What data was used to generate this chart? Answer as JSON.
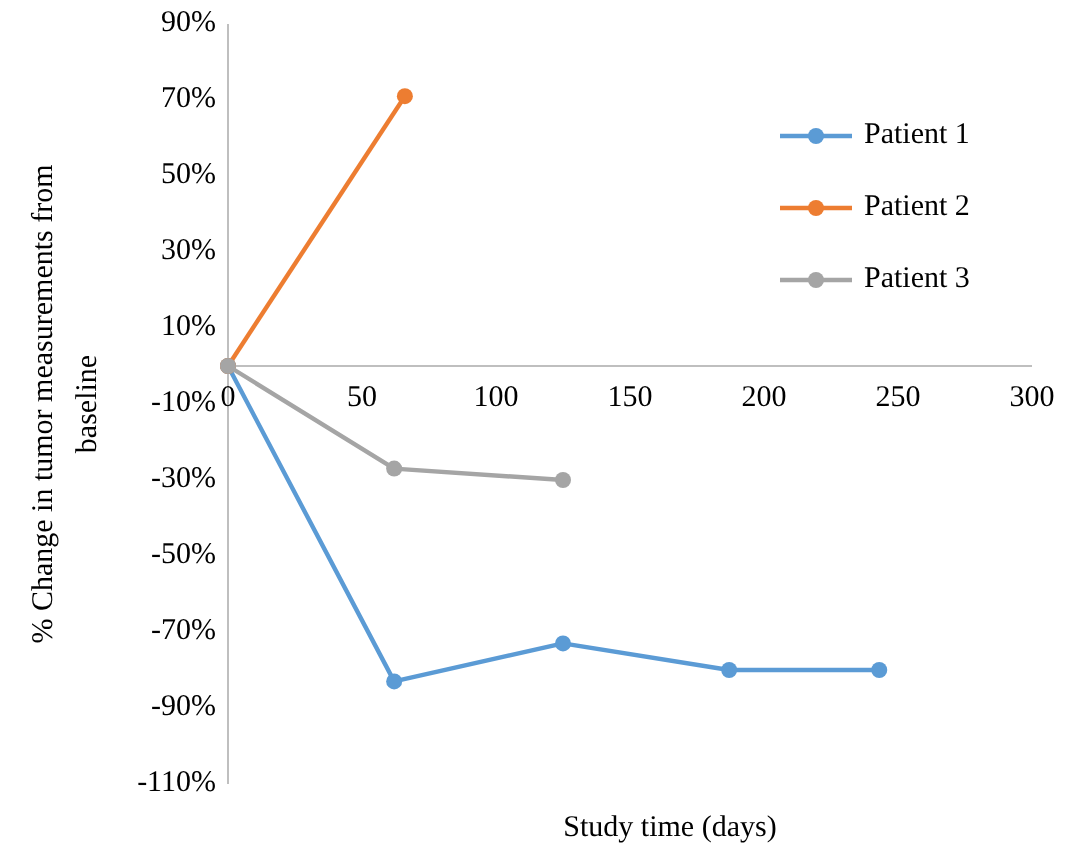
{
  "chart_data": {
    "type": "line",
    "xlabel": "Study time (days)",
    "ylabel": "% Change in tumor measurements from baseline",
    "xlim": [
      0,
      300
    ],
    "xticks": [
      0,
      50,
      100,
      150,
      200,
      250,
      300
    ],
    "ylim": [
      -110,
      90
    ],
    "yticks": [
      {
        "value": 90,
        "label": "90%"
      },
      {
        "value": 70,
        "label": "70%"
      },
      {
        "value": 50,
        "label": "50%"
      },
      {
        "value": 30,
        "label": "30%"
      },
      {
        "value": 10,
        "label": "10%"
      },
      {
        "value": -10,
        "label": "-10%"
      },
      {
        "value": -30,
        "label": "-30%"
      },
      {
        "value": -50,
        "label": "-50%"
      },
      {
        "value": -70,
        "label": "-70%"
      },
      {
        "value": -90,
        "label": "-90%"
      },
      {
        "value": -110,
        "label": "-110%"
      }
    ],
    "grid": false,
    "legend": "top right",
    "marker": "circle",
    "line_style": "solid",
    "series": [
      {
        "name": "Patient 1",
        "color": "#5b9bd5",
        "x": [
          0,
          62,
          125,
          187,
          243
        ],
        "values": [
          0,
          -83,
          -73,
          -80,
          -80
        ]
      },
      {
        "name": "Patient 2",
        "color": "#ed7d31",
        "x": [
          0,
          66
        ],
        "values": [
          0,
          71
        ]
      },
      {
        "name": "Patient 3",
        "color": "#a5a5a5",
        "x": [
          0,
          62,
          125
        ],
        "values": [
          0,
          -27,
          -30
        ]
      }
    ]
  }
}
